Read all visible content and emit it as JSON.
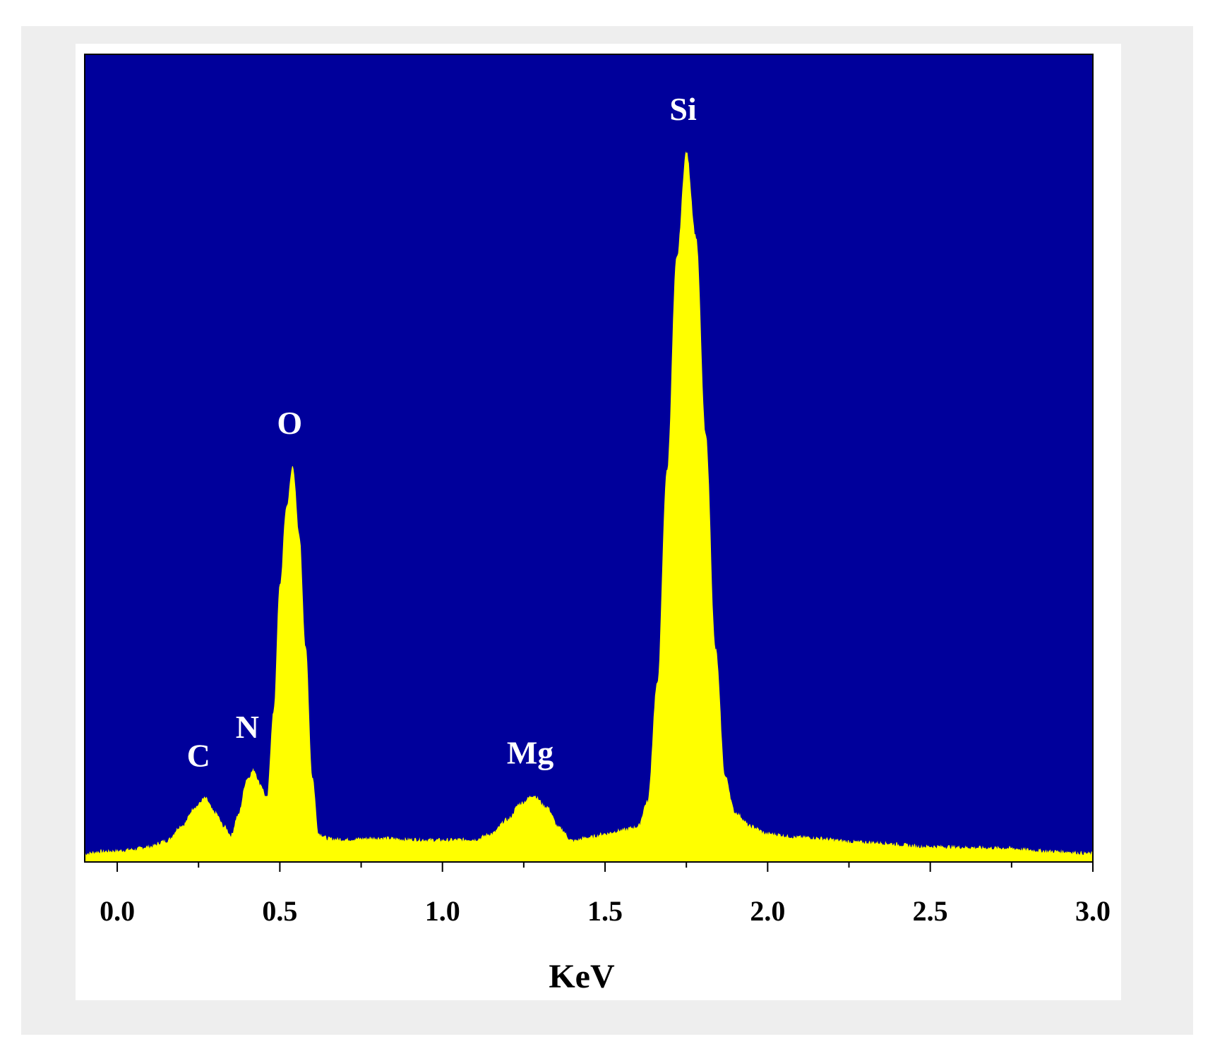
{
  "colors": {
    "plot_background": "#00009b",
    "spectrum_fill": "#ffff00",
    "peak_label": "#ffffff",
    "axis_text": "#000000",
    "outer_frame": "#eeeeee"
  },
  "chart_data": {
    "type": "area",
    "title": "",
    "xlabel": "KeV",
    "ylabel": "",
    "xlim": [
      -0.1,
      3.0
    ],
    "ylim": [
      0,
      1
    ],
    "y_axis_shown": false,
    "grid": false,
    "legend": "none",
    "x_ticks": [
      0.0,
      0.5,
      1.0,
      1.5,
      2.0,
      2.5,
      3.0
    ],
    "x_tick_labels": [
      "0.0",
      "0.5",
      "1.0",
      "1.5",
      "2.0",
      "2.5",
      "3.0"
    ],
    "x_minor_ticks": [
      0.25,
      0.75,
      1.25,
      1.75,
      2.25,
      2.75
    ],
    "series": [
      {
        "x": [
          -0.1,
          -0.05,
          0.0,
          0.05,
          0.1,
          0.15,
          0.2,
          0.24,
          0.27,
          0.3,
          0.33,
          0.35,
          0.37,
          0.4,
          0.42,
          0.44,
          0.46,
          0.48,
          0.5,
          0.52,
          0.54,
          0.56,
          0.58,
          0.6,
          0.62,
          0.65,
          0.7,
          0.8,
          0.9,
          1.0,
          1.1,
          1.15,
          1.2,
          1.24,
          1.28,
          1.32,
          1.36,
          1.4,
          1.45,
          1.5,
          1.55,
          1.6,
          1.63,
          1.66,
          1.69,
          1.72,
          1.75,
          1.78,
          1.81,
          1.84,
          1.87,
          1.9,
          1.95,
          2.0,
          2.1,
          2.3,
          2.5,
          2.7,
          2.9,
          3.0
        ],
        "y": [
          0.012,
          0.015,
          0.016,
          0.018,
          0.022,
          0.03,
          0.052,
          0.078,
          0.09,
          0.07,
          0.05,
          0.038,
          0.065,
          0.118,
          0.13,
          0.11,
          0.09,
          0.21,
          0.39,
          0.5,
          0.558,
          0.46,
          0.3,
          0.12,
          0.04,
          0.033,
          0.032,
          0.034,
          0.032,
          0.031,
          0.032,
          0.04,
          0.06,
          0.083,
          0.094,
          0.078,
          0.048,
          0.03,
          0.035,
          0.04,
          0.045,
          0.05,
          0.085,
          0.25,
          0.55,
          0.85,
          1.0,
          0.88,
          0.6,
          0.3,
          0.12,
          0.07,
          0.05,
          0.04,
          0.035,
          0.028,
          0.022,
          0.02,
          0.015,
          0.012
        ]
      }
    ],
    "annotations": [
      {
        "text": "C",
        "x": 0.25,
        "y": 0.09
      },
      {
        "text": "N",
        "x": 0.4,
        "y": 0.13
      },
      {
        "text": "O",
        "x": 0.53,
        "y": 0.558
      },
      {
        "text": "Mg",
        "x": 1.27,
        "y": 0.094
      },
      {
        "text": "Si",
        "x": 1.74,
        "y": 1.0
      }
    ]
  }
}
